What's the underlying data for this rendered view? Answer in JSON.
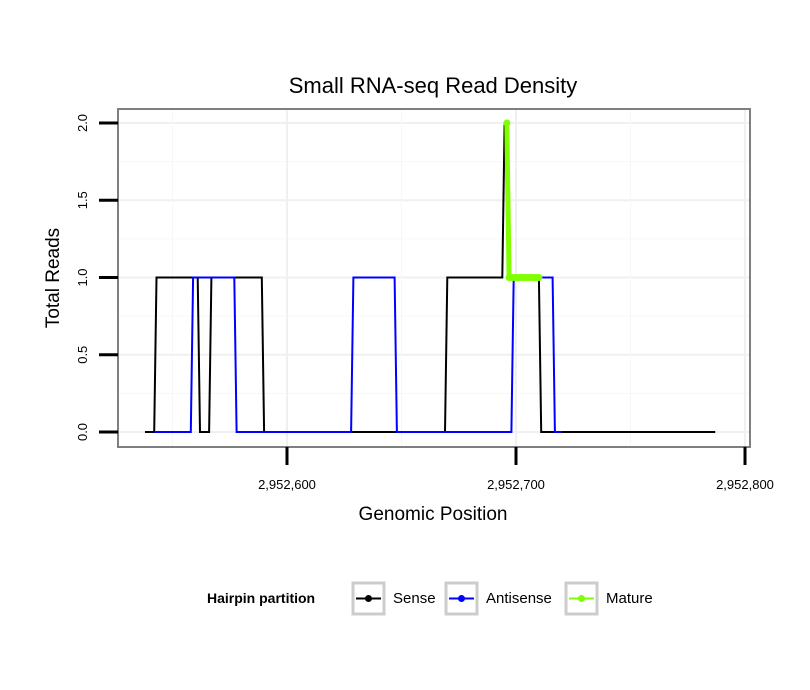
{
  "chart_data": {
    "type": "line",
    "title": "Small RNA-seq Read Density",
    "xlabel": "Genomic Position",
    "ylabel": "Total Reads",
    "xlim": [
      2952520,
      2952800
    ],
    "ylim": [
      -0.05,
      2.05
    ],
    "x_ticks": [
      2952600,
      2952700,
      2952800
    ],
    "x_tick_labels": [
      "2,952,600",
      "2,952,700",
      "2,952,800"
    ],
    "y_ticks": [
      0,
      0.5,
      1,
      1.5,
      2
    ],
    "y_tick_labels": [
      "0.0",
      "0.5",
      "1.0",
      "1.5",
      "2.0"
    ],
    "grid": true,
    "legend": {
      "title": "Hairpin partition",
      "position": "bottom",
      "entries": [
        "Sense",
        "Antisense",
        "Mature"
      ]
    },
    "series": [
      {
        "name": "Sense",
        "color": "#000000",
        "x": [
          2952538,
          2952542,
          2952543,
          2952561,
          2952562,
          2952566,
          2952567,
          2952589,
          2952590,
          2952669,
          2952670,
          2952694,
          2952695,
          2952696,
          2952697,
          2952710,
          2952711,
          2952787
        ],
        "y": [
          0,
          0,
          1,
          1,
          0,
          0,
          1,
          1,
          0,
          0,
          1,
          1,
          2,
          2,
          1,
          1,
          0,
          0
        ]
      },
      {
        "name": "Antisense",
        "color": "#0000ff",
        "x": [
          2952542,
          2952558,
          2952559,
          2952577,
          2952578,
          2952628,
          2952629,
          2952647,
          2952648,
          2952698,
          2952699,
          2952716,
          2952717,
          2952720
        ],
        "y": [
          0,
          0,
          1,
          1,
          0,
          0,
          1,
          1,
          0,
          0,
          1,
          1,
          0,
          0
        ]
      },
      {
        "name": "Mature",
        "color": "#7fff00",
        "x": [
          2952696,
          2952697,
          2952698,
          2952699,
          2952700,
          2952701,
          2952702,
          2952703,
          2952704,
          2952705,
          2952706,
          2952707,
          2952708,
          2952709,
          2952710
        ],
        "y": [
          2,
          1,
          1,
          1,
          1,
          1,
          1,
          1,
          1,
          1,
          1,
          1,
          1,
          1,
          1
        ]
      }
    ]
  }
}
